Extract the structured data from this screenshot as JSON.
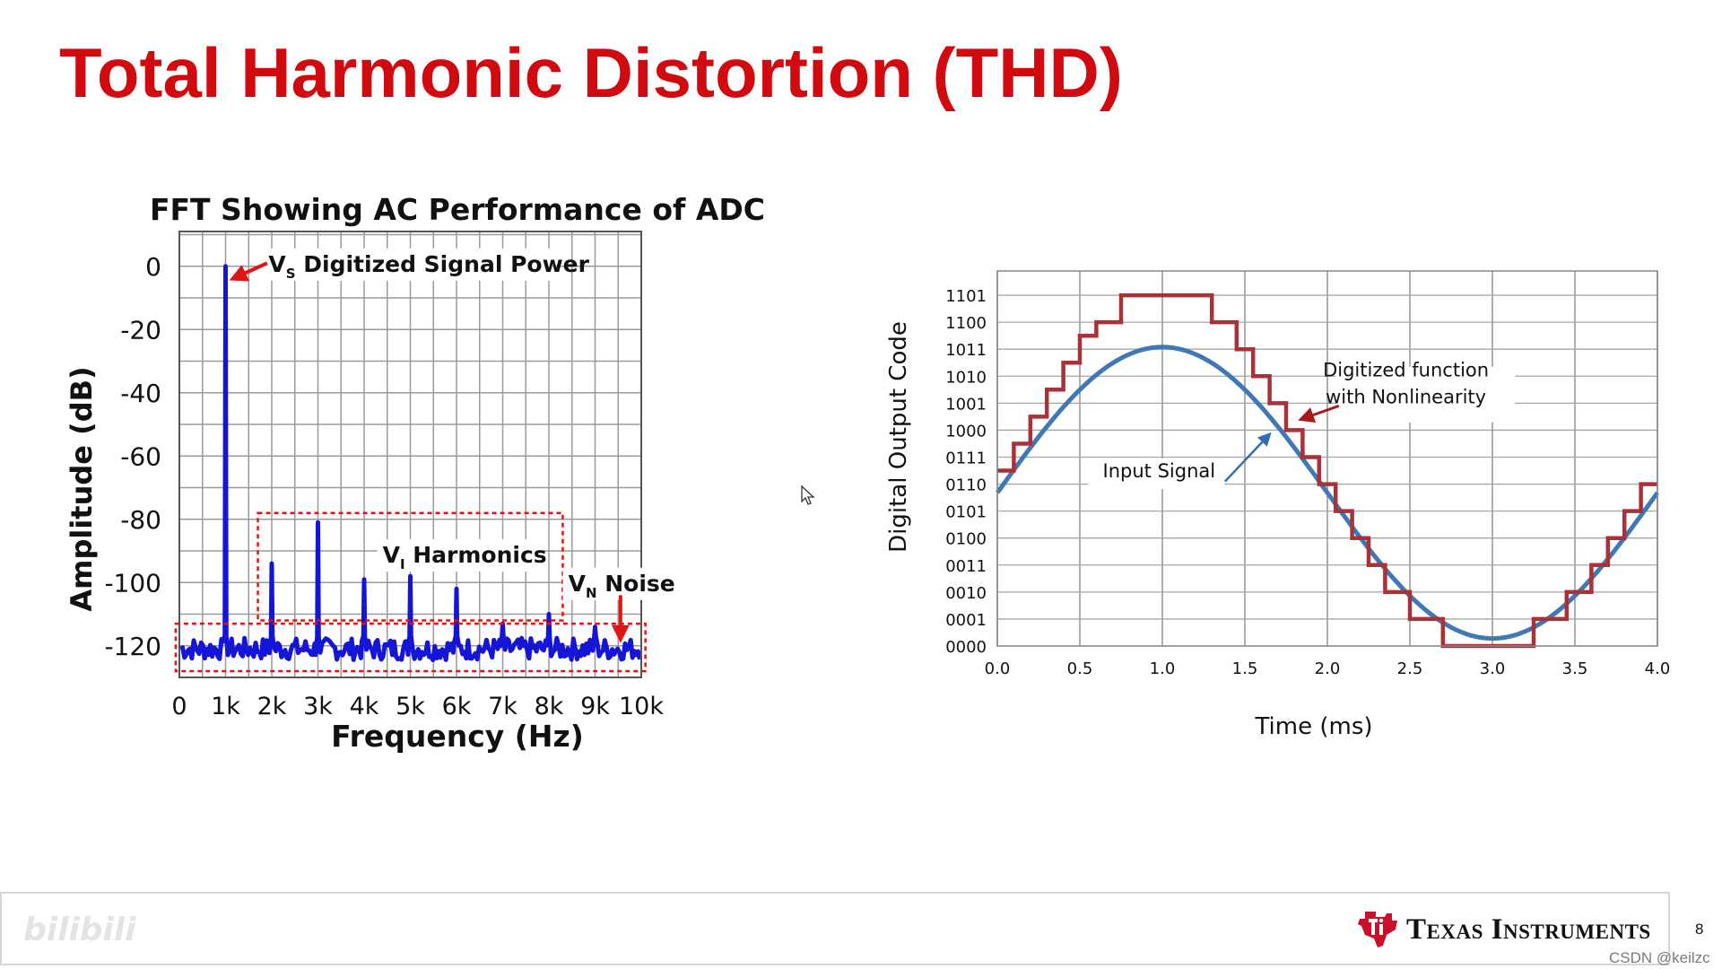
{
  "slide": {
    "title": "Total Harmonic Distortion (THD)",
    "footer": {
      "brand": "Texas Instruments",
      "page_number": "8",
      "credit": "CSDN @keilzc",
      "watermark": "bilibili",
      "logo_icon": "ti-logo-icon"
    }
  },
  "chart_data": [
    {
      "type": "line",
      "title": "FFT Showing AC Performance of ADC",
      "xlabel": "Frequency (Hz)",
      "ylabel": "Amplitude (dB)",
      "xlim": [
        0,
        10000
      ],
      "ylim": [
        -130,
        11
      ],
      "x_ticks": [
        "0",
        "1k",
        "2k",
        "3k",
        "4k",
        "5k",
        "6k",
        "7k",
        "8k",
        "9k",
        "10k"
      ],
      "x_tick_values": [
        0,
        1000,
        2000,
        3000,
        4000,
        5000,
        6000,
        7000,
        8000,
        9000,
        10000
      ],
      "y_ticks": [
        "0",
        "-20",
        "-40",
        "-60",
        "-80",
        "-100",
        "-120"
      ],
      "y_tick_values": [
        0,
        -20,
        -40,
        -60,
        -80,
        -100,
        -120
      ],
      "grid": true,
      "series": [
        {
          "color": "#1515d8",
          "noise_floor": -121,
          "peaks": [
            {
              "x": 1000,
              "y": 0
            },
            {
              "x": 2000,
              "y": -94
            },
            {
              "x": 3000,
              "y": -81
            },
            {
              "x": 4000,
              "y": -99
            },
            {
              "x": 5000,
              "y": -98
            },
            {
              "x": 6000,
              "y": -102
            },
            {
              "x": 7000,
              "y": -113
            },
            {
              "x": 8000,
              "y": -110
            },
            {
              "x": 9000,
              "y": -114
            }
          ]
        }
      ],
      "annotations": [
        {
          "main": "V",
          "sub": "S",
          "rest": " Digitized Signal Power"
        },
        {
          "main": "V",
          "sub": "I",
          "rest": " Harmonics"
        },
        {
          "main": "V",
          "sub": "N",
          "rest": " Noise"
        }
      ],
      "colors": {
        "annotation": "#e01515",
        "grid": "#9a9a9a"
      }
    },
    {
      "type": "line",
      "xlabel": "Time (ms)",
      "ylabel": "Digital Output Code",
      "xlim": [
        0,
        4
      ],
      "ylim": [
        0,
        13.9
      ],
      "x_ticks": [
        "0.0",
        "0.5",
        "1.0",
        "1.5",
        "2.0",
        "2.5",
        "3.0",
        "3.5",
        "4.0"
      ],
      "x_tick_values": [
        0,
        0.5,
        1,
        1.5,
        2,
        2.5,
        3,
        3.5,
        4
      ],
      "y_ticks": [
        "0000",
        "0001",
        "0010",
        "0011",
        "0100",
        "0101",
        "0110",
        "0111",
        "1000",
        "1001",
        "1010",
        "1011",
        "1100",
        "1101"
      ],
      "y_tick_values": [
        0,
        1,
        2,
        3,
        4,
        5,
        6,
        7,
        8,
        9,
        10,
        11,
        12,
        13
      ],
      "grid": true,
      "series": [
        {
          "name": "Input Signal",
          "color": "#3f78b4",
          "function": "sine",
          "offset": 5.4,
          "amplitude": 5.4,
          "period_ms": 4
        },
        {
          "name": "Digitized function with Nonlinearity",
          "color": "#a83238",
          "function": "step",
          "steps": [
            {
              "x0": 0,
              "x1": 0.1,
              "y": 6.5
            },
            {
              "x0": 0.1,
              "x1": 0.2,
              "y": 7.5
            },
            {
              "x0": 0.2,
              "x1": 0.3,
              "y": 8.5
            },
            {
              "x0": 0.3,
              "x1": 0.4,
              "y": 9.5
            },
            {
              "x0": 0.4,
              "x1": 0.5,
              "y": 10.5
            },
            {
              "x0": 0.5,
              "x1": 0.6,
              "y": 11.5
            },
            {
              "x0": 0.6,
              "x1": 0.75,
              "y": 12
            },
            {
              "x0": 0.75,
              "x1": 1.3,
              "y": 13
            },
            {
              "x0": 1.3,
              "x1": 1.45,
              "y": 12
            },
            {
              "x0": 1.45,
              "x1": 1.55,
              "y": 11
            },
            {
              "x0": 1.55,
              "x1": 1.65,
              "y": 10
            },
            {
              "x0": 1.65,
              "x1": 1.75,
              "y": 9
            },
            {
              "x0": 1.75,
              "x1": 1.85,
              "y": 8
            },
            {
              "x0": 1.85,
              "x1": 1.95,
              "y": 7
            },
            {
              "x0": 1.95,
              "x1": 2.05,
              "y": 6
            },
            {
              "x0": 2.05,
              "x1": 2.15,
              "y": 5
            },
            {
              "x0": 2.15,
              "x1": 2.25,
              "y": 4
            },
            {
              "x0": 2.25,
              "x1": 2.35,
              "y": 3
            },
            {
              "x0": 2.35,
              "x1": 2.5,
              "y": 2
            },
            {
              "x0": 2.5,
              "x1": 2.7,
              "y": 1
            },
            {
              "x0": 2.7,
              "x1": 3.25,
              "y": 0
            },
            {
              "x0": 3.25,
              "x1": 3.45,
              "y": 1
            },
            {
              "x0": 3.45,
              "x1": 3.6,
              "y": 2
            },
            {
              "x0": 3.6,
              "x1": 3.7,
              "y": 3
            },
            {
              "x0": 3.7,
              "x1": 3.8,
              "y": 4
            },
            {
              "x0": 3.8,
              "x1": 3.9,
              "y": 5
            },
            {
              "x0": 3.9,
              "x1": 4.0,
              "y": 6
            }
          ]
        }
      ],
      "annotations": [
        {
          "text_lines": [
            "Digitized function",
            "with Nonlinearity"
          ]
        },
        {
          "text_lines": [
            "Input Signal"
          ]
        }
      ],
      "colors": {
        "annotation_digitized": "#a81818",
        "annotation_input": "#2f6db6",
        "grid": "#a6a6a6"
      }
    }
  ]
}
